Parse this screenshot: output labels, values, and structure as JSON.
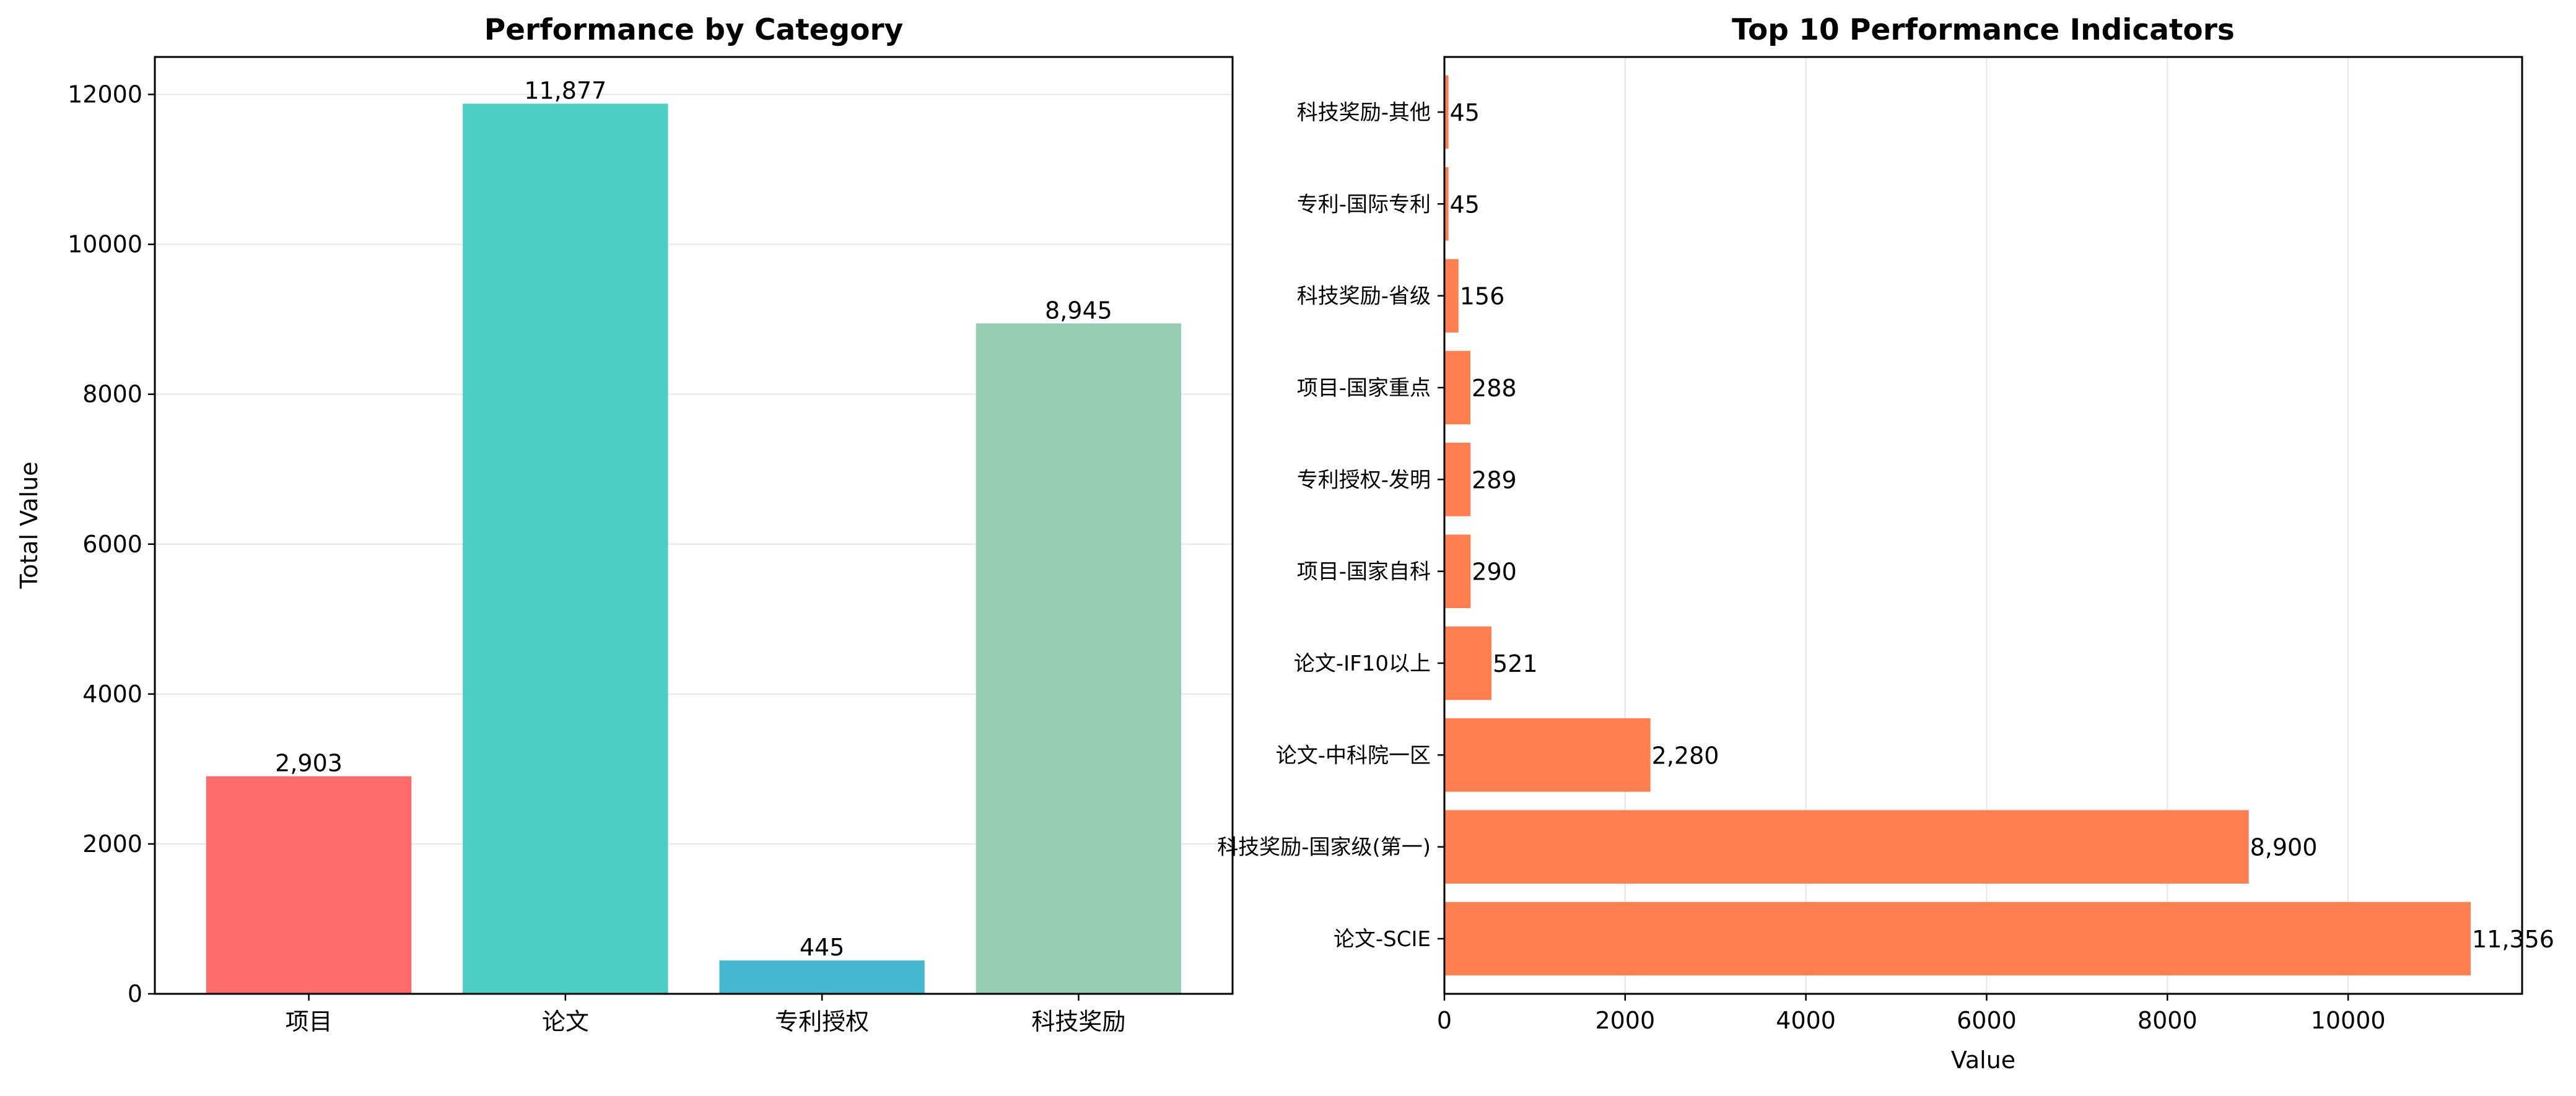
{
  "chart_data": [
    {
      "type": "bar",
      "title": "Performance by Category",
      "xlabel": "",
      "ylabel": "Total Value",
      "categories": [
        "项目",
        "论文",
        "专利授权",
        "科技奖励"
      ],
      "values": [
        2903,
        11877,
        445,
        8945
      ],
      "value_labels": [
        "2,903",
        "11,877",
        "445",
        "8,945"
      ],
      "colors": [
        "#FF6B6B",
        "#4ECDC4",
        "#45B7D1",
        "#96CEB4"
      ],
      "ylim": [
        0,
        12500
      ],
      "yticks": [
        0,
        2000,
        4000,
        6000,
        8000,
        10000,
        12000
      ],
      "grid": "y"
    },
    {
      "type": "bar",
      "orientation": "horizontal",
      "title": "Top 10 Performance Indicators",
      "xlabel": "Value",
      "ylabel": "",
      "categories": [
        "论文-SCIE",
        "科技奖励-国家级(第一)",
        "论文-中科院一区",
        "论文-IF10以上",
        "项目-国家自科",
        "专利授权-发明",
        "项目-国家重点",
        "科技奖励-省级",
        "专利-国际专利",
        "科技奖励-其他"
      ],
      "values": [
        11356,
        8900,
        2280,
        521,
        290,
        289,
        288,
        156,
        45,
        45
      ],
      "value_labels": [
        "11,356",
        "8,900",
        "2,280",
        "521",
        "290",
        "289",
        "288",
        "156",
        "45",
        "45"
      ],
      "color": "#FF7F50",
      "xlim": [
        0,
        11925
      ],
      "xticks": [
        0,
        2000,
        4000,
        6000,
        8000,
        10000
      ],
      "grid": "x"
    }
  ]
}
